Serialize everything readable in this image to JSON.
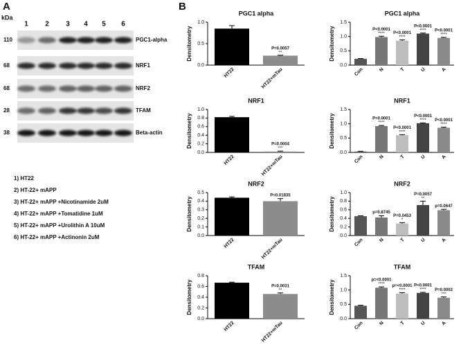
{
  "panel_a": {
    "label": "A",
    "unit": "kDa",
    "lanes": [
      "1",
      "2",
      "3",
      "4",
      "5",
      "6"
    ],
    "rows": [
      {
        "kda": "110",
        "protein": "PGC1-alpha"
      },
      {
        "kda": "68",
        "protein": "NRF1"
      },
      {
        "kda": "68",
        "protein": "NRF2"
      },
      {
        "kda": "28",
        "protein": "TFAM"
      },
      {
        "kda": "38",
        "protein": "Beta-actin"
      }
    ],
    "legend": [
      "1) HT22",
      "2) HT-22+ mAPP",
      "3) HT-22+ mAPP +Nicotinamide 2uM",
      "4) HT-22+ mAPP +Tomatidine 1uM",
      "5) HT-22+ mAPP +Urolithin A 10uM",
      "6) HT-22+ mAPP +Actinonin 2uM"
    ]
  },
  "panel_b": {
    "label": "B"
  },
  "chart_data": [
    {
      "type": "bar",
      "title": "PGC1 alpha",
      "ylabel": "Densitometry",
      "categories": [
        "HT22",
        "HT22+mTau"
      ],
      "values": [
        0.85,
        0.22
      ],
      "errors": [
        0.07,
        0.01
      ],
      "colors": [
        "#000000",
        "#8c8c8c"
      ],
      "ylim": [
        0,
        1.0
      ],
      "yticks": [
        {
          "value": 0,
          "label": "0.0"
        },
        {
          "value": 0.5,
          "label": "0.5"
        },
        {
          "value": 1,
          "label": "1.0"
        }
      ],
      "pvalues": [
        null,
        "P=0.0057"
      ],
      "stars": [
        null,
        "**"
      ]
    },
    {
      "type": "bar",
      "title": "PGC1 alpha",
      "ylabel": "Densitometry",
      "categories": [
        "Con",
        "N",
        "T",
        "U",
        "A"
      ],
      "values": [
        0.22,
        0.98,
        0.85,
        1.1,
        0.95
      ],
      "errors": [
        0.01,
        0.03,
        0.03,
        0.02,
        0.02
      ],
      "colors": [
        "#555555",
        "#777777",
        "#bdbdbd",
        "#444444",
        "#8a8a8a"
      ],
      "ylim": [
        0,
        1.5
      ],
      "yticks": [
        {
          "value": 0,
          "label": "0.0"
        },
        {
          "value": 0.5,
          "label": "0.5"
        },
        {
          "value": 1,
          "label": "1.0"
        },
        {
          "value": 1.5,
          "label": "1.5"
        }
      ],
      "pvalues": [
        null,
        "P<0.0001",
        "P<0.0001",
        "P<0.0001",
        "P<0.0001"
      ],
      "stars": [
        null,
        "****",
        "****",
        "****",
        "****"
      ]
    },
    {
      "type": "bar",
      "title": "NRF1",
      "ylabel": "Densitometry",
      "categories": [
        "HT22",
        "HT22+mTau"
      ],
      "values": [
        0.82,
        0.02
      ],
      "errors": [
        0.02,
        0.01
      ],
      "colors": [
        "#000000",
        "#8c8c8c"
      ],
      "ylim": [
        0,
        1.0
      ],
      "yticks": [
        {
          "value": 0,
          "label": "0.0"
        },
        {
          "value": 0.2,
          "label": "0.2"
        },
        {
          "value": 0.4,
          "label": "0.4"
        },
        {
          "value": 0.6,
          "label": "0.6"
        },
        {
          "value": 0.8,
          "label": "0.8"
        },
        {
          "value": 1,
          "label": "1.0"
        }
      ],
      "pvalues": [
        null,
        "P=0.0004"
      ],
      "stars": [
        null,
        "***"
      ]
    },
    {
      "type": "bar",
      "title": "NRF1",
      "ylabel": "Densitometry",
      "categories": [
        "Con",
        "N",
        "T",
        "U",
        "A"
      ],
      "values": [
        0.03,
        0.92,
        0.6,
        1.02,
        0.86
      ],
      "errors": [
        0.01,
        0.02,
        0.02,
        0.01,
        0.02
      ],
      "colors": [
        "#555555",
        "#777777",
        "#bdbdbd",
        "#444444",
        "#8a8a8a"
      ],
      "ylim": [
        0,
        1.5
      ],
      "yticks": [
        {
          "value": 0,
          "label": "0.0"
        },
        {
          "value": 0.5,
          "label": "0.5"
        },
        {
          "value": 1,
          "label": "1.0"
        },
        {
          "value": 1.5,
          "label": "1.5"
        }
      ],
      "pvalues": [
        null,
        "P<0.0001",
        "P<0.0001",
        "P<0.0001",
        "P<0.0001"
      ],
      "stars": [
        null,
        "****",
        "****",
        "****",
        "****"
      ]
    },
    {
      "type": "bar",
      "title": "NRF2",
      "ylabel": "Densitometry",
      "categories": [
        "HT22",
        "HT22+mTau"
      ],
      "values": [
        0.44,
        0.4
      ],
      "errors": [
        0.01,
        0.03
      ],
      "colors": [
        "#000000",
        "#8c8c8c"
      ],
      "ylim": [
        0,
        0.5
      ],
      "yticks": [
        {
          "value": 0,
          "label": "0.0"
        },
        {
          "value": 0.1,
          "label": "0.1"
        },
        {
          "value": 0.2,
          "label": "0.2"
        },
        {
          "value": 0.3,
          "label": "0.3"
        },
        {
          "value": 0.4,
          "label": "0.4"
        },
        {
          "value": 0.5,
          "label": "0.5"
        }
      ],
      "pvalues": [
        null,
        "P=0.01835"
      ],
      "stars": [
        null,
        null
      ]
    },
    {
      "type": "bar",
      "title": "NRF2",
      "ylabel": "Densitometry",
      "categories": [
        "Con",
        "N",
        "T",
        "U",
        "A"
      ],
      "values": [
        0.45,
        0.42,
        0.28,
        0.71,
        0.59
      ],
      "errors": [
        0.01,
        0.04,
        0.02,
        0.09,
        0.02
      ],
      "colors": [
        "#555555",
        "#777777",
        "#bdbdbd",
        "#444444",
        "#8a8a8a"
      ],
      "ylim": [
        0,
        1.0
      ],
      "yticks": [
        {
          "value": 0,
          "label": "0.0"
        },
        {
          "value": 0.2,
          "label": "0.2"
        },
        {
          "value": 0.4,
          "label": "0.4"
        },
        {
          "value": 0.6,
          "label": "0.6"
        },
        {
          "value": 0.8,
          "label": "0.8"
        },
        {
          "value": 1,
          "label": "1.0"
        }
      ],
      "pvalues": [
        null,
        "p=0.8745",
        "P=0.0453",
        "P=0.0057",
        "p=0.0647"
      ],
      "stars": [
        null,
        null,
        "*",
        "**",
        null
      ]
    },
    {
      "type": "bar",
      "title": "TFAM",
      "ylabel": "Densitometry",
      "categories": [
        "HT22",
        "HT22+mTau"
      ],
      "values": [
        0.67,
        0.46
      ],
      "errors": [
        0.01,
        0.02
      ],
      "colors": [
        "#000000",
        "#8c8c8c"
      ],
      "ylim": [
        0,
        0.8
      ],
      "yticks": [
        {
          "value": 0,
          "label": "0.0"
        },
        {
          "value": 0.2,
          "label": "0.2"
        },
        {
          "value": 0.4,
          "label": "0.4"
        },
        {
          "value": 0.6,
          "label": "0.6"
        },
        {
          "value": 0.8,
          "label": "0.8"
        }
      ],
      "pvalues": [
        null,
        "P=0.0031"
      ],
      "stars": [
        null,
        "**"
      ]
    },
    {
      "type": "bar",
      "title": "TFAM",
      "ylabel": "Densitometry",
      "categories": [
        "Con",
        "N",
        "T",
        "U",
        "A"
      ],
      "values": [
        0.45,
        1.08,
        0.88,
        0.9,
        0.73
      ],
      "errors": [
        0.02,
        0.03,
        0.03,
        0.02,
        0.03
      ],
      "colors": [
        "#555555",
        "#777777",
        "#bdbdbd",
        "#444444",
        "#8a8a8a"
      ],
      "ylim": [
        0,
        1.5
      ],
      "yticks": [
        {
          "value": 0,
          "label": "0.0"
        },
        {
          "value": 0.5,
          "label": "0.5"
        },
        {
          "value": 1,
          "label": "1.0"
        },
        {
          "value": 1.5,
          "label": "1.5"
        }
      ],
      "pvalues": [
        null,
        "p=<0.0001",
        "p=<0.0001",
        "P<0.0001",
        "P=0.0002"
      ],
      "stars": [
        null,
        "****",
        "****",
        "****",
        "***"
      ]
    }
  ]
}
